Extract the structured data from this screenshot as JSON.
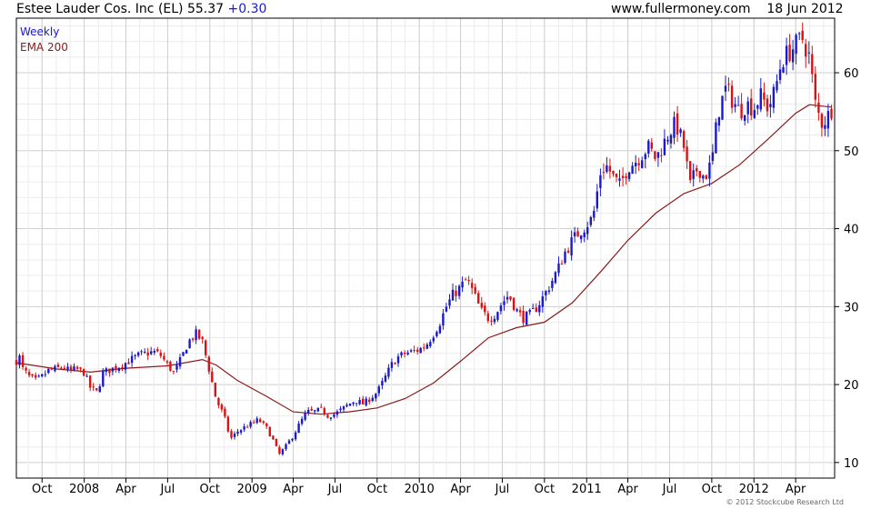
{
  "header": {
    "security": "Estee Lauder Cos. Inc (EL)",
    "price": "55.37",
    "change": "+0.30",
    "site": "www.fullermoney.com",
    "date": "18 Jun 2012"
  },
  "legend": {
    "weekly": "Weekly",
    "ema": "EMA 200"
  },
  "copyright": "© 2012 Stockcube Research Ltd",
  "colors": {
    "up": "#1a1acc",
    "down": "#dd1111",
    "ema": "#8b1a1a",
    "grid": "#dcdcdc",
    "axis": "#000000"
  },
  "chart_data": {
    "type": "candlestick",
    "title": "Estee Lauder Cos. Inc (EL)",
    "frequency": "Weekly",
    "ylim": [
      8,
      67
    ],
    "y_ticks": [
      10,
      20,
      30,
      40,
      50,
      60
    ],
    "x_range": [
      "2007-08-06",
      "2012-06-25"
    ],
    "x_ticks": [
      {
        "label": "Oct",
        "date": "2007-10-01"
      },
      {
        "label": "2008",
        "date": "2008-01-01"
      },
      {
        "label": "Apr",
        "date": "2008-04-01"
      },
      {
        "label": "Jul",
        "date": "2008-07-01"
      },
      {
        "label": "Oct",
        "date": "2008-10-01"
      },
      {
        "label": "2009",
        "date": "2009-01-01"
      },
      {
        "label": "Apr",
        "date": "2009-04-01"
      },
      {
        "label": "Jul",
        "date": "2009-07-01"
      },
      {
        "label": "Oct",
        "date": "2009-10-01"
      },
      {
        "label": "2010",
        "date": "2010-01-01"
      },
      {
        "label": "Apr",
        "date": "2010-04-01"
      },
      {
        "label": "Jul",
        "date": "2010-07-01"
      },
      {
        "label": "Oct",
        "date": "2010-10-01"
      },
      {
        "label": "2011",
        "date": "2011-01-01"
      },
      {
        "label": "Apr",
        "date": "2011-04-01"
      },
      {
        "label": "Jul",
        "date": "2011-07-01"
      },
      {
        "label": "Oct",
        "date": "2011-10-01"
      },
      {
        "label": "2012",
        "date": "2012-01-01"
      },
      {
        "label": "Apr",
        "date": "2012-04-01"
      }
    ],
    "price_series": {
      "name": "Weekly",
      "points": [
        [
          "2007-08-06",
          23.0
        ],
        [
          "2007-08-13",
          23.5
        ],
        [
          "2007-08-20",
          22.0
        ],
        [
          "2007-09-03",
          21.0
        ],
        [
          "2007-09-17",
          20.5
        ],
        [
          "2007-10-01",
          21.0
        ],
        [
          "2007-10-15",
          21.8
        ],
        [
          "2007-11-01",
          22.0
        ],
        [
          "2007-11-15",
          22.3
        ],
        [
          "2007-12-01",
          21.7
        ],
        [
          "2007-12-15",
          22.0
        ],
        [
          "2008-01-01",
          21.5
        ],
        [
          "2008-01-15",
          19.5
        ],
        [
          "2008-01-29",
          19.0
        ],
        [
          "2008-02-11",
          21.5
        ],
        [
          "2008-03-01",
          22.0
        ],
        [
          "2008-03-15",
          22.3
        ],
        [
          "2008-04-01",
          22.8
        ],
        [
          "2008-04-15",
          23.3
        ],
        [
          "2008-05-01",
          23.8
        ],
        [
          "2008-05-15",
          24.0
        ],
        [
          "2008-06-01",
          24.2
        ],
        [
          "2008-06-15",
          23.8
        ],
        [
          "2008-07-01",
          22.5
        ],
        [
          "2008-07-15",
          21.5
        ],
        [
          "2008-08-01",
          23.5
        ],
        [
          "2008-08-15",
          25.5
        ],
        [
          "2008-09-01",
          26.5
        ],
        [
          "2008-09-15",
          25.5
        ],
        [
          "2008-10-01",
          21.5
        ],
        [
          "2008-10-15",
          18.0
        ],
        [
          "2008-11-01",
          16.0
        ],
        [
          "2008-11-15",
          13.0
        ],
        [
          "2008-12-01",
          14.0
        ],
        [
          "2008-12-15",
          14.5
        ],
        [
          "2009-01-01",
          15.0
        ],
        [
          "2009-01-15",
          15.5
        ],
        [
          "2009-02-01",
          14.5
        ],
        [
          "2009-02-15",
          13.0
        ],
        [
          "2009-03-01",
          11.0
        ],
        [
          "2009-03-15",
          12.0
        ],
        [
          "2009-04-01",
          13.5
        ],
        [
          "2009-04-15",
          15.0
        ],
        [
          "2009-05-01",
          16.5
        ],
        [
          "2009-05-15",
          16.5
        ],
        [
          "2009-06-01",
          16.8
        ],
        [
          "2009-06-15",
          16.0
        ],
        [
          "2009-07-01",
          16.2
        ],
        [
          "2009-07-15",
          16.8
        ],
        [
          "2009-08-01",
          17.5
        ],
        [
          "2009-08-15",
          18.0
        ],
        [
          "2009-09-01",
          17.5
        ],
        [
          "2009-09-15",
          18.2
        ],
        [
          "2009-10-01",
          19.0
        ],
        [
          "2009-10-15",
          20.5
        ],
        [
          "2009-11-01",
          22.5
        ],
        [
          "2009-11-15",
          23.5
        ],
        [
          "2009-12-01",
          24.0
        ],
        [
          "2009-12-15",
          24.2
        ],
        [
          "2010-01-01",
          24.5
        ],
        [
          "2010-01-15",
          25.0
        ],
        [
          "2010-02-01",
          26.5
        ],
        [
          "2010-02-15",
          28.0
        ],
        [
          "2010-03-01",
          30.0
        ],
        [
          "2010-03-15",
          31.5
        ],
        [
          "2010-04-01",
          32.5
        ],
        [
          "2010-04-15",
          33.5
        ],
        [
          "2010-05-01",
          31.5
        ],
        [
          "2010-05-15",
          29.5
        ],
        [
          "2010-06-01",
          28.5
        ],
        [
          "2010-06-15",
          29.0
        ],
        [
          "2010-07-01",
          30.5
        ],
        [
          "2010-07-15",
          31.5
        ],
        [
          "2010-08-01",
          29.5
        ],
        [
          "2010-08-15",
          28.5
        ],
        [
          "2010-09-01",
          29.0
        ],
        [
          "2010-09-15",
          30.0
        ],
        [
          "2010-10-01",
          31.5
        ],
        [
          "2010-10-15",
          33.0
        ],
        [
          "2010-11-01",
          35.0
        ],
        [
          "2010-11-15",
          37.0
        ],
        [
          "2010-12-01",
          38.5
        ],
        [
          "2010-12-15",
          39.5
        ],
        [
          "2011-01-01",
          40.5
        ],
        [
          "2011-01-15",
          41.5
        ],
        [
          "2011-02-01",
          47.5
        ],
        [
          "2011-02-15",
          48.0
        ],
        [
          "2011-03-01",
          46.5
        ],
        [
          "2011-03-15",
          45.5
        ],
        [
          "2011-04-01",
          48.0
        ],
        [
          "2011-04-15",
          48.5
        ],
        [
          "2011-05-01",
          49.5
        ],
        [
          "2011-05-15",
          50.5
        ],
        [
          "2011-06-01",
          49.0
        ],
        [
          "2011-06-15",
          50.5
        ],
        [
          "2011-07-01",
          52.5
        ],
        [
          "2011-07-15",
          53.5
        ],
        [
          "2011-08-01",
          50.5
        ],
        [
          "2011-08-15",
          45.5
        ],
        [
          "2011-09-01",
          48.0
        ],
        [
          "2011-09-15",
          46.5
        ],
        [
          "2011-10-01",
          48.5
        ],
        [
          "2011-10-15",
          55.0
        ],
        [
          "2011-11-01",
          58.0
        ],
        [
          "2011-11-15",
          56.5
        ],
        [
          "2011-12-01",
          55.0
        ],
        [
          "2011-12-15",
          56.0
        ],
        [
          "2012-01-01",
          55.5
        ],
        [
          "2012-01-15",
          57.0
        ],
        [
          "2012-02-01",
          55.5
        ],
        [
          "2012-02-15",
          57.5
        ],
        [
          "2012-03-01",
          61.5
        ],
        [
          "2012-03-15",
          62.5
        ],
        [
          "2012-04-01",
          63.5
        ],
        [
          "2012-04-15",
          64.5
        ],
        [
          "2012-05-01",
          62.0
        ],
        [
          "2012-05-15",
          55.5
        ],
        [
          "2012-05-29",
          53.5
        ],
        [
          "2012-06-11",
          54.5
        ],
        [
          "2012-06-18",
          55.37
        ]
      ]
    },
    "ema_series": {
      "name": "EMA 200",
      "points": [
        [
          "2007-08-06",
          22.8
        ],
        [
          "2007-11-01",
          22.0
        ],
        [
          "2008-01-15",
          21.6
        ],
        [
          "2008-04-01",
          22.1
        ],
        [
          "2008-07-01",
          22.4
        ],
        [
          "2008-09-15",
          23.2
        ],
        [
          "2008-10-15",
          22.5
        ],
        [
          "2008-12-01",
          20.5
        ],
        [
          "2009-02-01",
          18.5
        ],
        [
          "2009-04-01",
          16.5
        ],
        [
          "2009-06-01",
          16.2
        ],
        [
          "2009-08-01",
          16.5
        ],
        [
          "2009-10-01",
          17.0
        ],
        [
          "2009-12-01",
          18.2
        ],
        [
          "2010-02-01",
          20.2
        ],
        [
          "2010-04-01",
          23.0
        ],
        [
          "2010-06-01",
          26.0
        ],
        [
          "2010-08-01",
          27.3
        ],
        [
          "2010-10-01",
          28.0
        ],
        [
          "2010-12-01",
          30.5
        ],
        [
          "2011-02-01",
          34.5
        ],
        [
          "2011-04-01",
          38.5
        ],
        [
          "2011-06-01",
          42.0
        ],
        [
          "2011-08-01",
          44.5
        ],
        [
          "2011-10-01",
          45.8
        ],
        [
          "2011-12-01",
          48.2
        ],
        [
          "2012-02-01",
          51.5
        ],
        [
          "2012-04-01",
          54.8
        ],
        [
          "2012-05-01",
          55.9
        ],
        [
          "2012-06-18",
          55.6
        ]
      ]
    }
  }
}
